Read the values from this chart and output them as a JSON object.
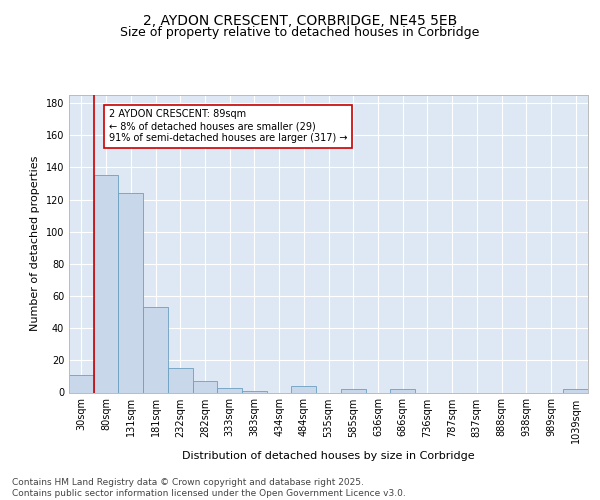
{
  "title_line1": "2, AYDON CRESCENT, CORBRIDGE, NE45 5EB",
  "title_line2": "Size of property relative to detached houses in Corbridge",
  "xlabel": "Distribution of detached houses by size in Corbridge",
  "ylabel": "Number of detached properties",
  "categories": [
    "30sqm",
    "80sqm",
    "131sqm",
    "181sqm",
    "232sqm",
    "282sqm",
    "333sqm",
    "383sqm",
    "434sqm",
    "484sqm",
    "535sqm",
    "585sqm",
    "636sqm",
    "686sqm",
    "736sqm",
    "787sqm",
    "837sqm",
    "888sqm",
    "938sqm",
    "989sqm",
    "1039sqm"
  ],
  "values": [
    11,
    135,
    124,
    53,
    15,
    7,
    3,
    1,
    0,
    4,
    0,
    2,
    0,
    2,
    0,
    0,
    0,
    0,
    0,
    0,
    2
  ],
  "bar_color": "#c8d8ea",
  "bar_edge_color": "#6a9fc0",
  "background_color": "#dde8f4",
  "grid_color": "#ffffff",
  "vline_color": "#cc0000",
  "vline_index": 0.5,
  "annotation_text": "2 AYDON CRESCENT: 89sqm\n← 8% of detached houses are smaller (29)\n91% of semi-detached houses are larger (317) →",
  "annotation_box_facecolor": "#ffffff",
  "annotation_box_edgecolor": "#cc0000",
  "ylim": [
    0,
    185
  ],
  "yticks": [
    0,
    20,
    40,
    60,
    80,
    100,
    120,
    140,
    160,
    180
  ],
  "footer_text": "Contains HM Land Registry data © Crown copyright and database right 2025.\nContains public sector information licensed under the Open Government Licence v3.0.",
  "title_fontsize": 10,
  "subtitle_fontsize": 9,
  "axis_label_fontsize": 8,
  "tick_fontsize": 7,
  "annotation_fontsize": 7,
  "footer_fontsize": 6.5
}
